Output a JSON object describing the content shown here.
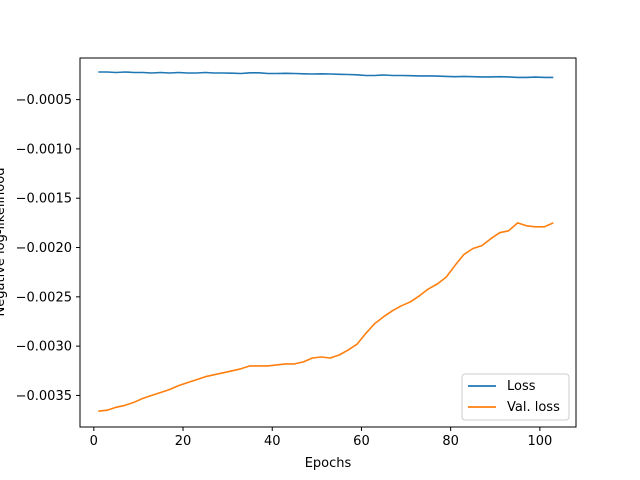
{
  "chart_data": {
    "type": "line",
    "title": "",
    "xlabel": "Epochs",
    "ylabel": "Negative log-likelihood",
    "xlim": [
      -3.1,
      108.1
    ],
    "ylim": [
      -0.00382,
      -7.8e-05
    ],
    "xticks": [
      0,
      20,
      40,
      60,
      80,
      100
    ],
    "yticks": [
      -0.0035,
      -0.003,
      -0.0025,
      -0.002,
      -0.0015,
      -0.001,
      -0.0005
    ],
    "ytick_labels": [
      "−0.0035",
      "−0.0030",
      "−0.0025",
      "−0.0020",
      "−0.0015",
      "−0.0010",
      "−0.0005"
    ],
    "legend_position": "lower-right",
    "grid": false,
    "series": [
      {
        "name": "Loss",
        "color": "#1f77b4",
        "x": [
          1,
          3,
          5,
          7,
          9,
          11,
          13,
          15,
          17,
          19,
          21,
          23,
          25,
          27,
          29,
          31,
          33,
          35,
          37,
          39,
          41,
          43,
          45,
          47,
          49,
          51,
          53,
          55,
          57,
          59,
          61,
          63,
          65,
          67,
          69,
          71,
          73,
          75,
          77,
          79,
          81,
          83,
          85,
          87,
          89,
          91,
          93,
          95,
          97,
          99,
          101,
          103
        ],
        "y": [
          -0.00022,
          -0.00022,
          -0.000225,
          -0.00022,
          -0.000225,
          -0.000225,
          -0.00023,
          -0.000225,
          -0.00023,
          -0.000225,
          -0.00023,
          -0.00023,
          -0.000225,
          -0.00023,
          -0.00023,
          -0.000232,
          -0.000235,
          -0.000228,
          -0.000228,
          -0.000235,
          -0.000235,
          -0.000233,
          -0.000235,
          -0.000238,
          -0.00024,
          -0.000238,
          -0.00024,
          -0.000243,
          -0.000245,
          -0.000248,
          -0.000255,
          -0.000255,
          -0.00025,
          -0.000255,
          -0.000255,
          -0.000258,
          -0.00026,
          -0.00026,
          -0.000262,
          -0.000265,
          -0.000268,
          -0.000265,
          -0.000268,
          -0.00027,
          -0.00027,
          -0.000268,
          -0.00027,
          -0.000275,
          -0.000275,
          -0.000272,
          -0.000275,
          -0.000275
        ]
      },
      {
        "name": "Val. loss",
        "color": "#ff7f0e",
        "x": [
          1,
          3,
          5,
          7,
          9,
          11,
          13,
          15,
          17,
          19,
          21,
          23,
          25,
          27,
          29,
          31,
          33,
          35,
          37,
          39,
          41,
          43,
          45,
          47,
          49,
          51,
          53,
          55,
          57,
          59,
          61,
          63,
          65,
          67,
          69,
          71,
          73,
          75,
          77,
          79,
          81,
          83,
          85,
          87,
          89,
          91,
          93,
          95,
          97,
          99,
          101,
          103
        ],
        "y": [
          -0.00366,
          -0.00365,
          -0.00362,
          -0.0036,
          -0.00357,
          -0.00353,
          -0.0035,
          -0.00347,
          -0.00344,
          -0.0034,
          -0.00337,
          -0.00334,
          -0.00331,
          -0.00329,
          -0.00327,
          -0.00325,
          -0.00323,
          -0.0032,
          -0.0032,
          -0.0032,
          -0.00319,
          -0.00318,
          -0.00318,
          -0.00316,
          -0.00312,
          -0.00311,
          -0.00312,
          -0.00309,
          -0.00304,
          -0.00298,
          -0.00287,
          -0.00277,
          -0.0027,
          -0.00264,
          -0.00259,
          -0.00255,
          -0.00249,
          -0.00242,
          -0.00237,
          -0.0023,
          -0.00218,
          -0.00207,
          -0.00201,
          -0.00198,
          -0.00191,
          -0.00185,
          -0.00183,
          -0.00175,
          -0.00178,
          -0.00179,
          -0.00179,
          -0.00175
        ]
      }
    ]
  }
}
